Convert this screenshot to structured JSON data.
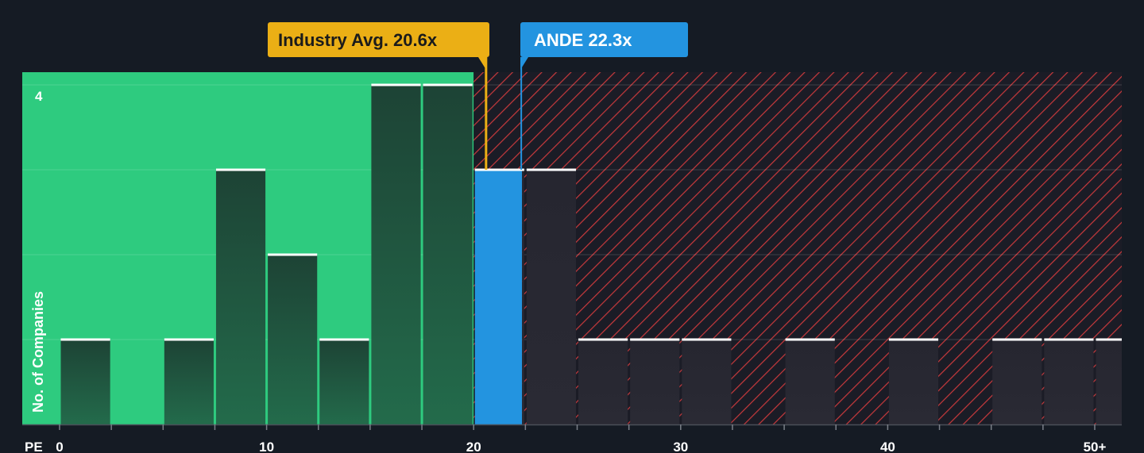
{
  "chart_data": {
    "type": "bar",
    "xlabel": "PE",
    "ylabel": "No. of Companies",
    "x_ticks": [
      "0",
      "10",
      "20",
      "30",
      "40",
      "50+"
    ],
    "y_tick_label": "4",
    "ylim": [
      0,
      4
    ],
    "bin_width": 2.5,
    "bins": [
      {
        "start": 0,
        "count": 1
      },
      {
        "start": 2.5,
        "count": 0
      },
      {
        "start": 5,
        "count": 1
      },
      {
        "start": 7.5,
        "count": 3
      },
      {
        "start": 10,
        "count": 2
      },
      {
        "start": 12.5,
        "count": 1
      },
      {
        "start": 15,
        "count": 4
      },
      {
        "start": 17.5,
        "count": 4
      },
      {
        "start": 20,
        "count": 3
      },
      {
        "start": 22.5,
        "count": 3
      },
      {
        "start": 25,
        "count": 1
      },
      {
        "start": 27.5,
        "count": 1
      },
      {
        "start": 30,
        "count": 1
      },
      {
        "start": 32.5,
        "count": 0
      },
      {
        "start": 35,
        "count": 1
      },
      {
        "start": 37.5,
        "count": 0
      },
      {
        "start": 40,
        "count": 1
      },
      {
        "start": 42.5,
        "count": 0
      },
      {
        "start": 45,
        "count": 1
      },
      {
        "start": 47.5,
        "count": 1
      },
      {
        "start": 50,
        "count": 1
      }
    ],
    "industry_avg": {
      "label": "Industry Avg. 20.6x",
      "value": 20.6
    },
    "company": {
      "label": "ANDE 22.3x",
      "value": 22.3
    },
    "grid": true,
    "colors": {
      "background": "#151b24",
      "fair_zone": "#2ecb7f",
      "bar_in_fair": "#1f4b3b",
      "overvalued_hatch": "#c8393c",
      "bar_in_over": "#2a2630",
      "company_bar": "#2394e0",
      "industry_callout": "#ebaf15",
      "bar_cap": "#ffffff"
    }
  }
}
